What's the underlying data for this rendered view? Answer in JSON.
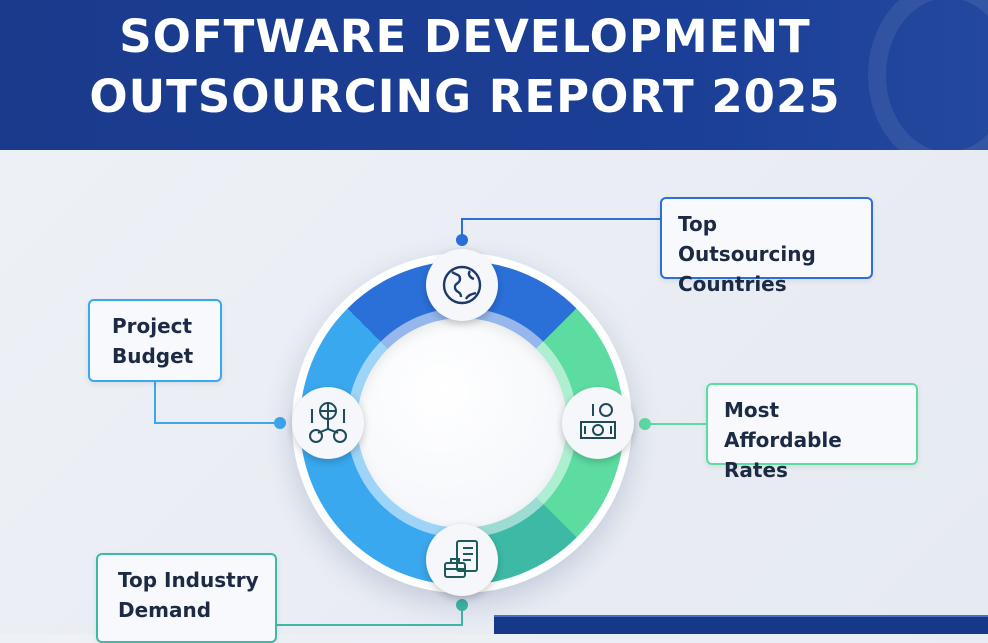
{
  "header": {
    "title_line1": "SOFTWARE DEVELOPMENT",
    "title_line2": "OUTSOURCING REPORT 2025"
  },
  "colors": {
    "header": "#1a3a8c",
    "blue": "#2b6fd8",
    "green": "#5ddca2",
    "teal": "#3db9a6",
    "light_blue": "#3aa8ee"
  },
  "nodes": [
    {
      "label_line1": "Top Outsourcing",
      "label_line2": "Countries",
      "icon": "globe-icon"
    },
    {
      "label_line1": "Project",
      "label_line2": "Budget",
      "icon": "global-finance-icon"
    },
    {
      "label_line1": "Most Affordable",
      "label_line2": "Rates",
      "icon": "money-icon"
    },
    {
      "label_line1": "Top Industry",
      "label_line2": "Demand",
      "icon": "briefcase-document-icon"
    }
  ]
}
